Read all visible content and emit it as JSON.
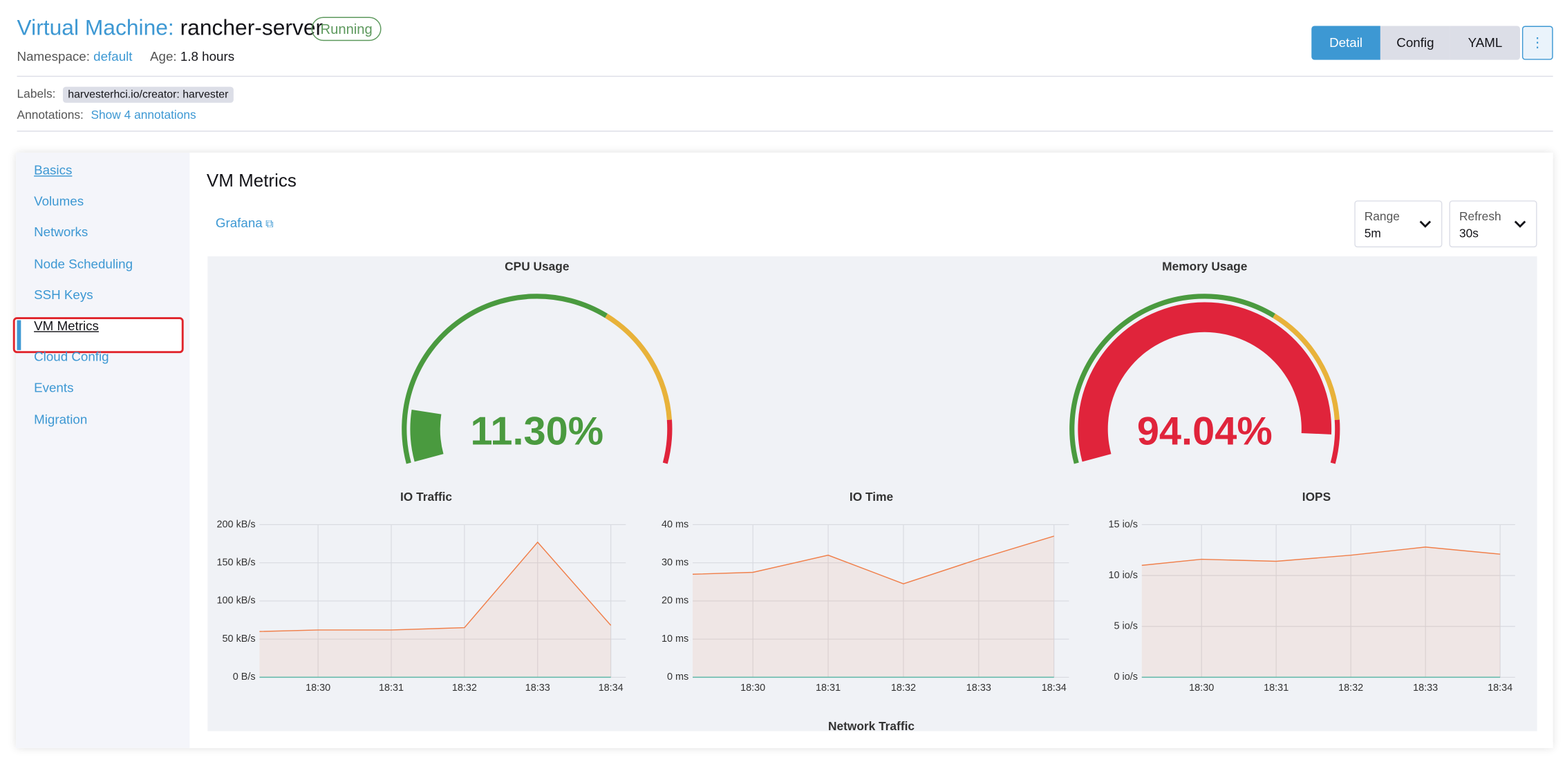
{
  "header": {
    "title_prefix": "Virtual Machine:",
    "title": "rancher-server",
    "status": "Running",
    "namespace_label": "Namespace:",
    "namespace": "default",
    "age_label": "Age:",
    "age": "1.8 hours"
  },
  "tabs": [
    "Detail",
    "Config",
    "YAML"
  ],
  "labels": {
    "label": "Labels:",
    "value": "harvesterhci.io/creator: harvester"
  },
  "annotations": {
    "label": "Annotations:",
    "link": "Show 4 annotations"
  },
  "sidebar": {
    "items": [
      "Basics",
      "Volumes",
      "Networks",
      "Node Scheduling",
      "SSH Keys",
      "VM Metrics",
      "Cloud Config",
      "Events",
      "Migration"
    ],
    "selected": 5
  },
  "metrics": {
    "title": "VM Metrics",
    "grafana": "Grafana",
    "range": {
      "label": "Range",
      "value": "5m"
    },
    "refresh": {
      "label": "Refresh",
      "value": "30s"
    },
    "gauges": [
      {
        "title": "CPU Usage",
        "value": 11.3,
        "value_label": "11.30%",
        "ylim": [
          0,
          100
        ]
      },
      {
        "title": "Memory Usage",
        "value": 94.04,
        "value_label": "94.04%",
        "ylim": [
          0,
          100
        ]
      }
    ],
    "charts": [
      {
        "type": "line",
        "title": "IO Traffic",
        "x": [
          29.2,
          30,
          31,
          32,
          33,
          34
        ],
        "series": [
          {
            "color": "#f07f4a",
            "values": [
              60,
              62,
              62,
              65,
              177,
              68
            ]
          },
          {
            "color": "#5fb8a8",
            "values": [
              0,
              0,
              0,
              0,
              0,
              0
            ]
          }
        ],
        "xlim": [
          29.2,
          34
        ],
        "xticks": [
          {
            "value": 30,
            "label": "18:30"
          },
          {
            "value": 31,
            "label": "18:31"
          },
          {
            "value": 32,
            "label": "18:32"
          },
          {
            "value": 33,
            "label": "18:33"
          },
          {
            "value": 34,
            "label": "18:34"
          }
        ],
        "ylim": [
          0,
          200
        ],
        "yticks": [
          {
            "value": 0,
            "label": "0 B/s"
          },
          {
            "value": 50,
            "label": "50 kB/s"
          },
          {
            "value": 100,
            "label": "100 kB/s"
          },
          {
            "value": 150,
            "label": "150 kB/s"
          },
          {
            "value": 200,
            "label": "200 kB/s"
          }
        ],
        "grid": true
      },
      {
        "type": "line",
        "title": "IO Time",
        "x": [
          29.2,
          30,
          31,
          32,
          33,
          34
        ],
        "series": [
          {
            "color": "#f07f4a",
            "values": [
              27,
              27.5,
              32,
              24.5,
              31,
              37
            ]
          },
          {
            "color": "#5fb8a8",
            "values": [
              0,
              0,
              0,
              0,
              0,
              0
            ]
          }
        ],
        "xlim": [
          29.2,
          34
        ],
        "xticks": [
          {
            "value": 30,
            "label": "18:30"
          },
          {
            "value": 31,
            "label": "18:31"
          },
          {
            "value": 32,
            "label": "18:32"
          },
          {
            "value": 33,
            "label": "18:33"
          },
          {
            "value": 34,
            "label": "18:34"
          }
        ],
        "ylim": [
          0,
          40
        ],
        "yticks": [
          {
            "value": 0,
            "label": "0 ms"
          },
          {
            "value": 10,
            "label": "10 ms"
          },
          {
            "value": 20,
            "label": "20 ms"
          },
          {
            "value": 30,
            "label": "30 ms"
          },
          {
            "value": 40,
            "label": "40 ms"
          }
        ],
        "grid": true
      },
      {
        "type": "line",
        "title": "IOPS",
        "x": [
          29.2,
          30,
          31,
          32,
          33,
          34
        ],
        "series": [
          {
            "color": "#f07f4a",
            "values": [
              11,
              11.6,
              11.4,
              12,
              12.8,
              12.1
            ]
          },
          {
            "color": "#5fb8a8",
            "values": [
              0,
              0,
              0,
              0,
              0,
              0
            ]
          }
        ],
        "xlim": [
          29.2,
          34
        ],
        "xticks": [
          {
            "value": 30,
            "label": "18:30"
          },
          {
            "value": 31,
            "label": "18:31"
          },
          {
            "value": 32,
            "label": "18:32"
          },
          {
            "value": 33,
            "label": "18:33"
          },
          {
            "value": 34,
            "label": "18:34"
          }
        ],
        "ylim": [
          0,
          15
        ],
        "yticks": [
          {
            "value": 0,
            "label": "0 io/s"
          },
          {
            "value": 5,
            "label": "5 io/s"
          },
          {
            "value": 10,
            "label": "10 io/s"
          },
          {
            "value": 15,
            "label": "15 io/s"
          }
        ],
        "grid": true
      }
    ],
    "network_title": "Network Traffic"
  }
}
